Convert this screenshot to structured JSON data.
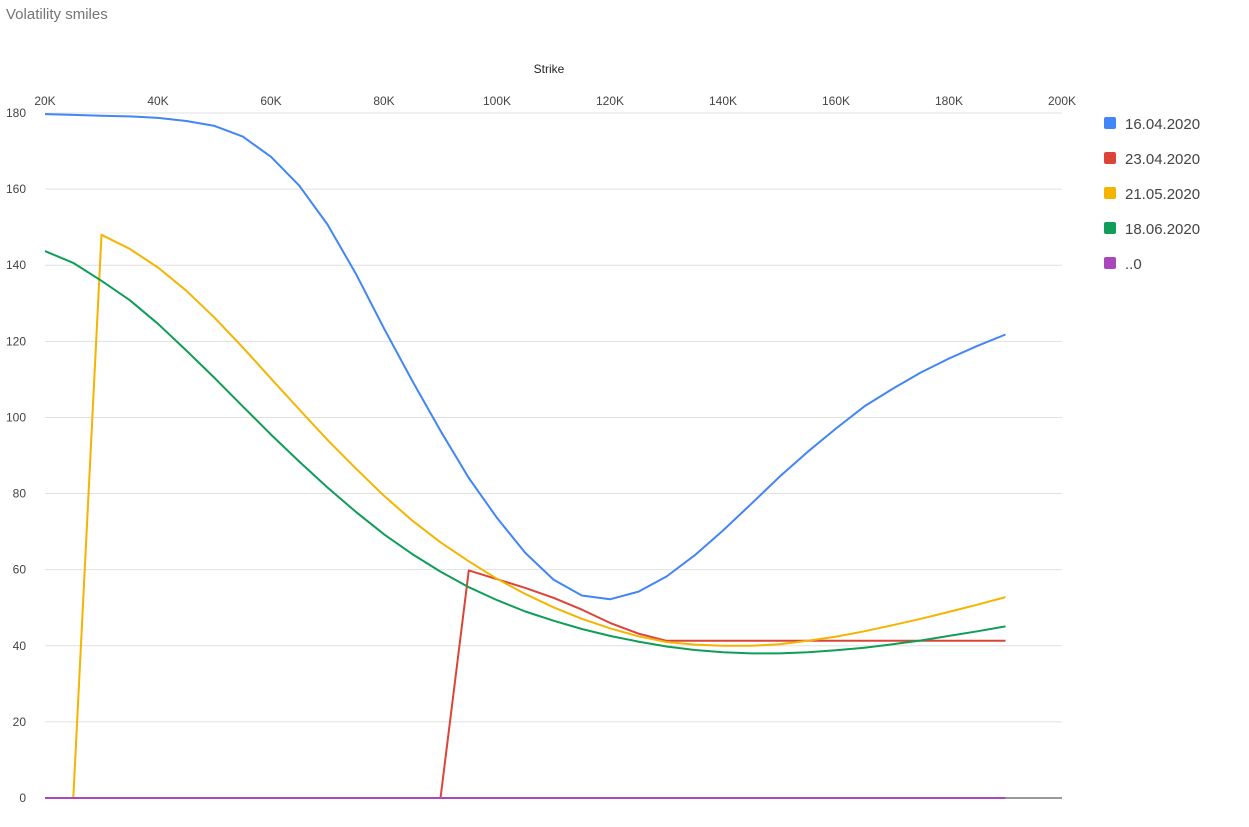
{
  "chart_data": {
    "type": "line",
    "title": "Volatility smiles",
    "xlabel": "Strike",
    "ylabel": "",
    "xlim": [
      20000,
      200000
    ],
    "ylim": [
      0,
      180
    ],
    "x_ticks": [
      20000,
      40000,
      60000,
      80000,
      100000,
      120000,
      140000,
      160000,
      180000,
      200000
    ],
    "x_tick_labels": [
      "20K",
      "40K",
      "60K",
      "80K",
      "100K",
      "120K",
      "140K",
      "160K",
      "180K",
      "200K"
    ],
    "y_ticks": [
      0,
      20,
      40,
      60,
      80,
      100,
      120,
      140,
      160,
      180
    ],
    "y_tick_labels": [
      "0",
      "20",
      "40",
      "60",
      "80",
      "100",
      "120",
      "140",
      "160",
      "180"
    ],
    "x_axis_position": "top",
    "grid": true,
    "legend_position": "right",
    "x": [
      20000,
      25000,
      30000,
      35000,
      40000,
      45000,
      50000,
      55000,
      60000,
      65000,
      70000,
      75000,
      80000,
      85000,
      90000,
      95000,
      100000,
      105000,
      110000,
      115000,
      120000,
      125000,
      130000,
      135000,
      140000,
      145000,
      150000,
      155000,
      160000,
      165000,
      170000,
      175000,
      180000,
      185000,
      190000
    ],
    "series": [
      {
        "name": "16.04.2020",
        "color": "#4285f4",
        "values": [
          179.7,
          179.5,
          179.3,
          179.1,
          178.7,
          177.9,
          176.6,
          173.8,
          168.5,
          160.9,
          150.7,
          137.8,
          123.4,
          109.6,
          96.5,
          84.1,
          73.6,
          64.4,
          57.4,
          53.2,
          52.2,
          54.2,
          58.2,
          63.8,
          70.3,
          77.3,
          84.4,
          91.0,
          97.1,
          102.9,
          107.5,
          111.8,
          115.5,
          118.8,
          121.8
        ]
      },
      {
        "name": "23.04.2020",
        "color": "#db4437",
        "values": [
          0,
          0,
          0,
          0,
          0,
          0,
          0,
          0,
          0,
          0,
          0,
          0,
          0,
          0,
          0,
          59.8,
          57.5,
          55.2,
          52.6,
          49.5,
          46.0,
          43.2,
          41.3,
          41.3,
          41.3,
          41.3,
          41.3,
          41.3,
          41.3,
          41.3,
          41.3,
          41.3,
          41.3,
          41.3,
          41.3
        ]
      },
      {
        "name": "21.05.2020",
        "color": "#f4b400",
        "values": [
          0,
          0,
          148.0,
          144.3,
          139.4,
          133.3,
          126.2,
          118.4,
          110.2,
          102.1,
          94.1,
          86.6,
          79.4,
          72.9,
          67.2,
          62.2,
          57.6,
          53.6,
          50.1,
          47.1,
          44.6,
          42.5,
          41.0,
          40.3,
          40.0,
          40.0,
          40.4,
          41.3,
          42.4,
          43.8,
          45.4,
          47.1,
          48.9,
          50.8,
          52.8
        ]
      },
      {
        "name": "18.06.2020",
        "color": "#0f9d58",
        "values": [
          143.7,
          140.6,
          135.9,
          130.8,
          124.6,
          117.6,
          110.4,
          102.9,
          95.5,
          88.4,
          81.6,
          75.2,
          69.3,
          64.1,
          59.5,
          55.4,
          52.0,
          49.0,
          46.6,
          44.4,
          42.6,
          41.1,
          39.8,
          38.9,
          38.3,
          38.0,
          38.0,
          38.3,
          38.8,
          39.5,
          40.4,
          41.4,
          42.6,
          43.8,
          45.1
        ]
      },
      {
        "name": "..0",
        "color": "#ab47bc",
        "values": [
          0,
          0,
          0,
          0,
          0,
          0,
          0,
          0,
          0,
          0,
          0,
          0,
          0,
          0,
          0,
          0,
          0,
          0,
          0,
          0,
          0,
          0,
          0,
          0,
          0,
          0,
          0,
          0,
          0,
          0,
          0,
          0,
          0,
          0,
          0
        ]
      }
    ]
  }
}
